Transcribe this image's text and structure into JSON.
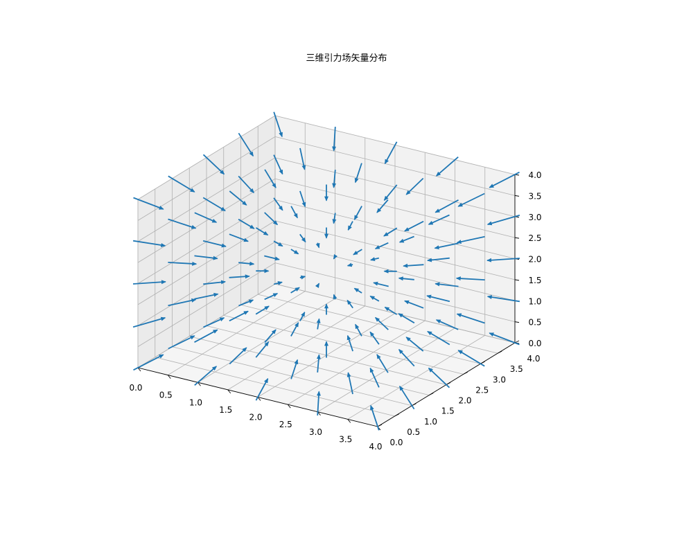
{
  "chart_data": {
    "type": "quiver3d",
    "title": "三维引力场矢量分布",
    "xlabel": "",
    "ylabel": "",
    "zlabel": "",
    "xlim": [
      0,
      4
    ],
    "ylim": [
      0,
      4
    ],
    "zlim": [
      0,
      4
    ],
    "x_ticks": [
      "0.0",
      "0.5",
      "1.0",
      "1.5",
      "2.0",
      "2.5",
      "3.0",
      "3.5",
      "4.0"
    ],
    "y_ticks": [
      "0.0",
      "0.5",
      "1.0",
      "1.5",
      "2.0",
      "2.5",
      "3.0",
      "3.5",
      "4.0"
    ],
    "z_ticks": [
      "0.0",
      "0.5",
      "1.0",
      "1.5",
      "2.0",
      "2.5",
      "3.0",
      "3.5",
      "4.0"
    ],
    "grid": true,
    "grid_points": [
      0,
      1,
      2,
      3,
      4
    ],
    "field": "attractive toward center (2, 2, 2)",
    "center": [
      2,
      2,
      2
    ],
    "arrow_color": "#1f77b4"
  }
}
